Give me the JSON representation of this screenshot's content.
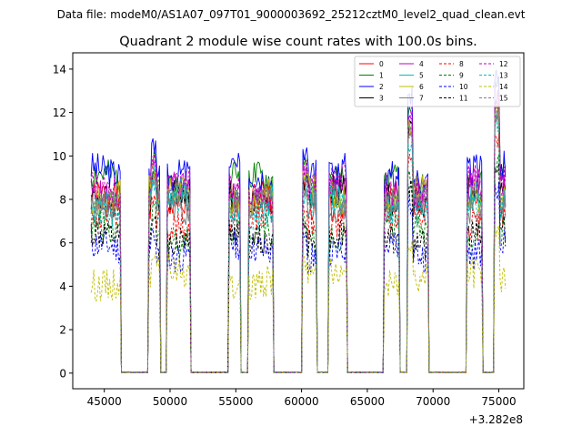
{
  "chart_data": {
    "type": "line",
    "suptitle": "Data file: modeM0/AS1A07_097T01_9000003692_25212cztM0_level2_quad_clean.evt",
    "title": "Quadrant 2 module wise count rates with 100.0s bins.",
    "xlabel": "",
    "ylabel": "",
    "x_offset_label": "+3.282e8",
    "xlim": [
      42600,
      76900
    ],
    "ylim": [
      -0.72,
      14.75
    ],
    "x_ticks": [
      45000,
      50000,
      55000,
      60000,
      65000,
      70000,
      75000
    ],
    "x_tick_labels": [
      "45000",
      "50000",
      "55000",
      "60000",
      "65000",
      "70000",
      "75000"
    ],
    "y_ticks": [
      0,
      2,
      4,
      6,
      8,
      10,
      12,
      14
    ],
    "y_tick_labels": [
      "0",
      "2",
      "4",
      "6",
      "8",
      "10",
      "12",
      "14"
    ],
    "legend_position": "top-right",
    "bin_width_s": 100,
    "x_range": [
      44000,
      75500
    ],
    "gaps": [
      [
        46300,
        48300
      ],
      [
        49300,
        49700
      ],
      [
        51600,
        54400
      ],
      [
        55400,
        55900
      ],
      [
        57900,
        60000
      ],
      [
        61200,
        62000
      ],
      [
        63500,
        66200
      ],
      [
        67500,
        68000
      ],
      [
        69700,
        72500
      ],
      [
        73800,
        74600
      ]
    ],
    "segment_peaks": [
      [
        48600,
        48900,
        9.5
      ],
      [
        54450,
        54700,
        7.8
      ],
      [
        60050,
        60400,
        9.0
      ],
      [
        68000,
        68400,
        11.5
      ],
      [
        74600,
        75000,
        12.5
      ]
    ],
    "series": [
      {
        "name": "0",
        "color": "#ff0000",
        "dash": "solid",
        "level": 7.9
      },
      {
        "name": "1",
        "color": "#008000",
        "dash": "solid",
        "level": 8.8
      },
      {
        "name": "2",
        "color": "#0000ff",
        "dash": "solid",
        "level": 9.2
      },
      {
        "name": "3",
        "color": "#000000",
        "dash": "solid",
        "level": 8.1
      },
      {
        "name": "4",
        "color": "#bf00bf",
        "dash": "solid",
        "level": 8.4
      },
      {
        "name": "5",
        "color": "#00bfbf",
        "dash": "solid",
        "level": 8.0
      },
      {
        "name": "6",
        "color": "#bfbf00",
        "dash": "solid",
        "level": 8.2
      },
      {
        "name": "7",
        "color": "#808080",
        "dash": "solid",
        "level": 7.7
      },
      {
        "name": "8",
        "color": "#ff0000",
        "dash": "dashed",
        "level": 7.0
      },
      {
        "name": "9",
        "color": "#008000",
        "dash": "dashed",
        "level": 6.4
      },
      {
        "name": "10",
        "color": "#0000ff",
        "dash": "dashed",
        "level": 5.6
      },
      {
        "name": "11",
        "color": "#000000",
        "dash": "dashed",
        "level": 6.2
      },
      {
        "name": "12",
        "color": "#bf00bf",
        "dash": "dashed",
        "level": 8.6
      },
      {
        "name": "13",
        "color": "#00bfbf",
        "dash": "dashed",
        "level": 7.6
      },
      {
        "name": "14",
        "color": "#bfbf00",
        "dash": "dashed",
        "level": 4.4
      },
      {
        "name": "15",
        "color": "#808080",
        "dash": "dashed",
        "level": 8.0
      }
    ]
  }
}
